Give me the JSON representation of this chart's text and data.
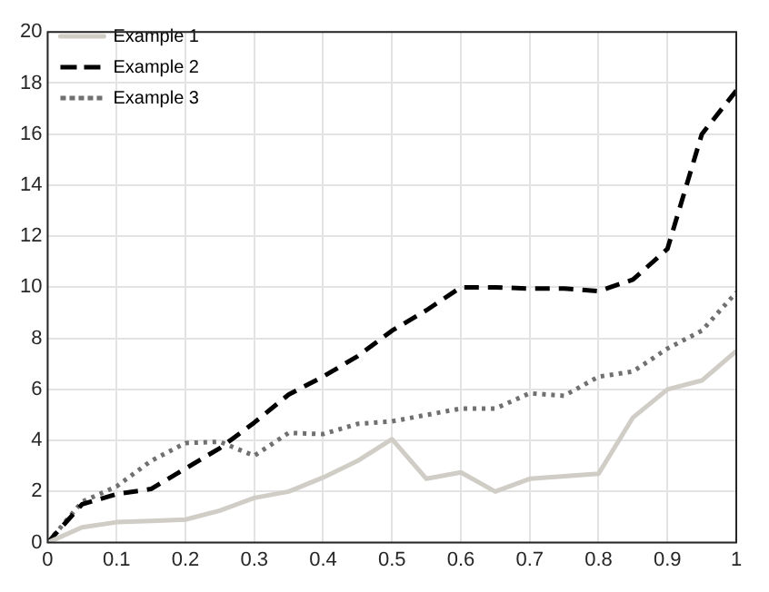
{
  "chart_data": {
    "type": "line",
    "x": [
      0,
      0.05,
      0.1,
      0.15,
      0.2,
      0.25,
      0.3,
      0.35,
      0.4,
      0.45,
      0.5,
      0.55,
      0.6,
      0.65,
      0.7,
      0.75,
      0.8,
      0.85,
      0.9,
      0.95,
      1
    ],
    "series": [
      {
        "name": "Example 1",
        "color": "#d0ccc6",
        "line_style": "solid",
        "values": [
          0,
          0.6,
          0.8,
          0.85,
          0.9,
          1.25,
          1.75,
          2.0,
          2.55,
          3.2,
          4.05,
          2.5,
          2.75,
          2.0,
          2.5,
          2.6,
          2.7,
          4.9,
          6.0,
          6.35,
          7.5
        ]
      },
      {
        "name": "Example 2",
        "color": "#000000",
        "line_style": "dashed",
        "values": [
          0,
          1.5,
          1.9,
          2.1,
          2.9,
          3.7,
          4.7,
          5.8,
          6.5,
          7.3,
          8.3,
          9.1,
          10.0,
          10.0,
          9.95,
          9.95,
          9.85,
          10.3,
          11.5,
          16.0,
          17.7
        ]
      },
      {
        "name": "Example 3",
        "color": "#707070",
        "line_style": "dotted",
        "values": [
          0,
          1.6,
          2.2,
          3.2,
          3.9,
          3.95,
          3.4,
          4.3,
          4.25,
          4.65,
          4.75,
          5.0,
          5.25,
          5.25,
          5.85,
          5.75,
          6.5,
          6.7,
          7.6,
          8.3,
          9.8
        ]
      }
    ],
    "xlim": [
      0,
      1
    ],
    "xticks": [
      0,
      0.1,
      0.2,
      0.3,
      0.4,
      0.5,
      0.6,
      0.7,
      0.8,
      0.9,
      1
    ],
    "ylim": [
      0,
      20
    ],
    "yticks": [
      0,
      2,
      4,
      6,
      8,
      10,
      12,
      14,
      16,
      18,
      20
    ],
    "grid": true,
    "legend": "top left",
    "marker": "none"
  }
}
